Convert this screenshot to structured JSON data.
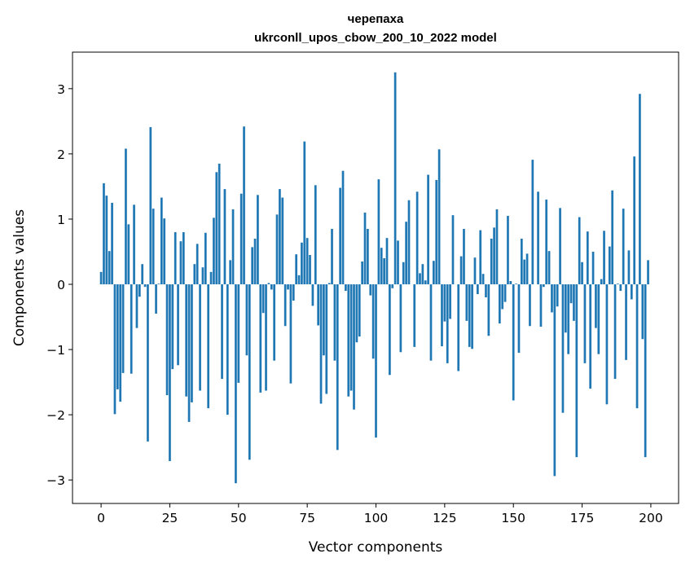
{
  "chart_data": {
    "type": "bar",
    "title_line1": "черепаха",
    "title_line2": "ukrconll_upos_cbow_200_10_2022 model",
    "xlabel": "Vector components",
    "ylabel": "Components values",
    "xlim": [
      -10.4,
      210.1
    ],
    "ylim": [
      -3.36,
      3.56
    ],
    "xticks": [
      0,
      25,
      50,
      75,
      100,
      125,
      150,
      175,
      200
    ],
    "yticks": [
      -3,
      -2,
      -1,
      0,
      1,
      2,
      3
    ],
    "xtick_labels": [
      "0",
      "25",
      "50",
      "75",
      "100",
      "125",
      "150",
      "175",
      "200"
    ],
    "ytick_labels": [
      "−3",
      "−2",
      "−1",
      "0",
      "1",
      "2",
      "3"
    ],
    "grid": false,
    "bar_color": "#1f77b4",
    "values": [
      0.19,
      1.55,
      1.36,
      0.51,
      1.25,
      -1.99,
      -1.61,
      -1.8,
      -1.36,
      2.08,
      0.92,
      -1.37,
      1.22,
      -0.67,
      -0.19,
      0.31,
      -0.04,
      -2.41,
      2.41,
      1.16,
      -0.45,
      0.01,
      1.33,
      1.01,
      -1.7,
      -2.71,
      -1.3,
      0.8,
      -1.24,
      0.66,
      0.8,
      -1.72,
      -2.11,
      -1.81,
      0.31,
      0.62,
      -1.63,
      0.26,
      0.79,
      -1.9,
      0.19,
      1.02,
      1.72,
      1.85,
      -1.45,
      1.46,
      -2.0,
      0.37,
      1.15,
      -3.05,
      -1.51,
      1.39,
      2.42,
      -1.09,
      -2.69,
      0.57,
      0.7,
      1.37,
      -1.66,
      -0.44,
      -1.63,
      0.02,
      -0.08,
      -1.17,
      1.07,
      1.46,
      1.33,
      -0.64,
      -0.08,
      -1.52,
      -0.25,
      0.46,
      0.14,
      0.64,
      2.19,
      0.71,
      0.45,
      -0.33,
      1.52,
      -0.63,
      -1.83,
      -1.09,
      -1.68,
      0.02,
      0.85,
      -1.17,
      -2.54,
      1.48,
      1.74,
      -0.1,
      -1.72,
      -1.63,
      -1.92,
      -0.89,
      -0.8,
      0.35,
      1.1,
      0.85,
      -0.17,
      -1.14,
      -2.35,
      1.61,
      0.56,
      0.4,
      0.71,
      -1.39,
      -0.06,
      3.25,
      0.67,
      -1.04,
      0.34,
      0.96,
      1.29,
      0.0,
      -0.96,
      1.42,
      0.17,
      0.31,
      0.06,
      1.68,
      -1.17,
      0.36,
      1.6,
      2.07,
      -0.95,
      -0.57,
      -1.21,
      -0.53,
      1.06,
      0.0,
      -1.33,
      0.43,
      0.85,
      -0.56,
      -0.96,
      -0.99,
      0.41,
      -0.15,
      0.83,
      0.16,
      -0.2,
      -0.79,
      0.7,
      0.87,
      1.15,
      -0.6,
      -0.38,
      -0.27,
      1.05,
      0.05,
      -1.78,
      0.01,
      -1.05,
      0.7,
      0.38,
      0.47,
      -0.64,
      1.91,
      0.0,
      1.42,
      -0.65,
      -0.04,
      1.3,
      0.51,
      -0.43,
      -2.94,
      -0.34,
      1.17,
      -1.97,
      -0.74,
      -1.07,
      -0.29,
      -0.56,
      -2.65,
      1.03,
      0.34,
      -1.21,
      0.81,
      -1.6,
      0.5,
      -0.67,
      -1.07,
      0.08,
      0.82,
      -1.84,
      0.58,
      1.44,
      -1.45,
      0.01,
      -0.1,
      1.16,
      -1.16,
      0.52,
      -0.23,
      1.96,
      -1.9,
      2.92,
      -0.84,
      -2.65,
      0.37
    ]
  }
}
